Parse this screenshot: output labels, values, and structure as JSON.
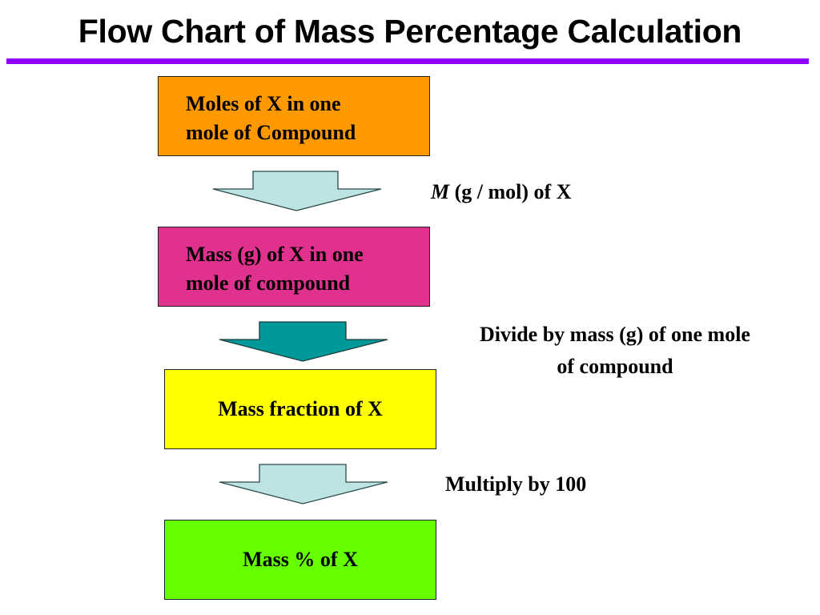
{
  "title": "Flow Chart of Mass Percentage Calculation",
  "boxes": [
    {
      "line1": "Moles of X in one",
      "line2": "mole of Compound",
      "color": "#ff9900"
    },
    {
      "line1": "Mass (g) of X in one",
      "line2": "mole of compound",
      "color": "#e0318f"
    },
    {
      "text": "Mass fraction of X",
      "color": "#ffff00"
    },
    {
      "text": "Mass % of X",
      "color": "#66ff00"
    }
  ],
  "steps": [
    {
      "italic": "M",
      "rest": " (g / mol) of X",
      "arrow_color": "#bde3e3"
    },
    {
      "line1": "Divide by mass (g) of one mole",
      "line2": "of compound",
      "arrow_color": "#009999"
    },
    {
      "text": "Multiply by 100",
      "arrow_color": "#bde3e3"
    }
  ]
}
